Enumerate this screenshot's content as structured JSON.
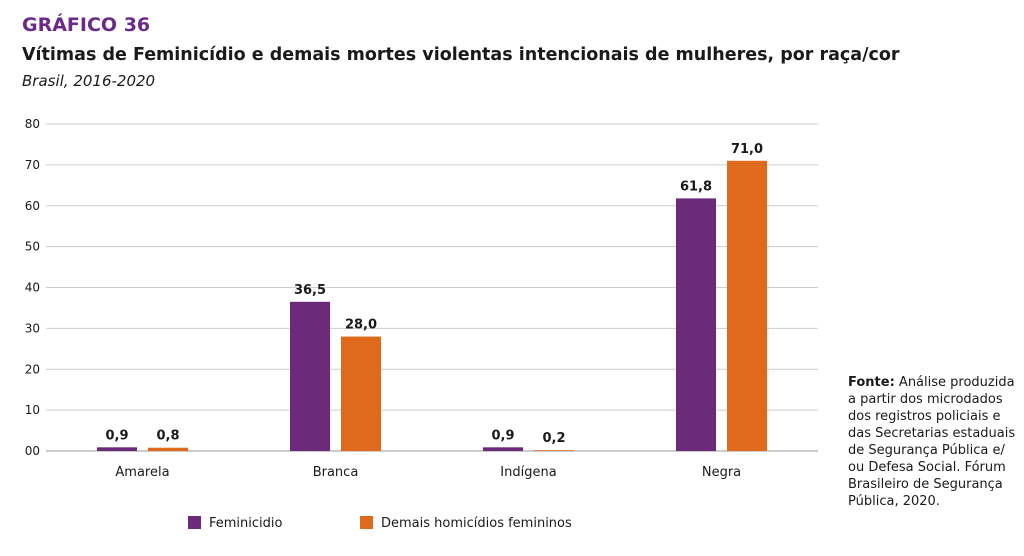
{
  "header": {
    "label": "GRÁFICO 36",
    "title": "Vítimas de Feminicídio e demais mortes violentas intencionais de mulheres, por raça/cor",
    "subtitle": "Brasil, 2016-2020"
  },
  "source": {
    "prefix": "Fonte:",
    "text": "Análise produzida a partir dos microdados dos registros policiais e das Secretarias estaduais de Segurança Pública e/ ou Defesa Social. Fórum Brasileiro de Segurança Pública, 2020."
  },
  "colors": {
    "feminicidio": "#6b2a7a",
    "demais": "#e06a1c",
    "grid": "#cccccc",
    "text": "#1a1a1a"
  },
  "chart_data": {
    "type": "bar",
    "categories": [
      "Amarela",
      "Branca",
      "Indígena",
      "Negra"
    ],
    "series": [
      {
        "name": "Feminicidio",
        "values": [
          0.9,
          36.5,
          0.9,
          61.8
        ],
        "labels": [
          "0,9",
          "36,5",
          "0,9",
          "61,8"
        ],
        "color": "#6b2a7a"
      },
      {
        "name": "Demais homicídios femininos",
        "values": [
          0.8,
          28.0,
          0.2,
          71.0
        ],
        "labels": [
          "0,8",
          "28,0",
          "0,2",
          "71,0"
        ],
        "color": "#e06a1c"
      }
    ],
    "ylim": [
      0,
      80
    ],
    "yticks": [
      0,
      10,
      20,
      30,
      40,
      50,
      60,
      70,
      80
    ],
    "ytick_labels": [
      "00",
      "10",
      "20",
      "30",
      "40",
      "50",
      "60",
      "70",
      "80"
    ],
    "grid": true,
    "legend": "bottom"
  }
}
